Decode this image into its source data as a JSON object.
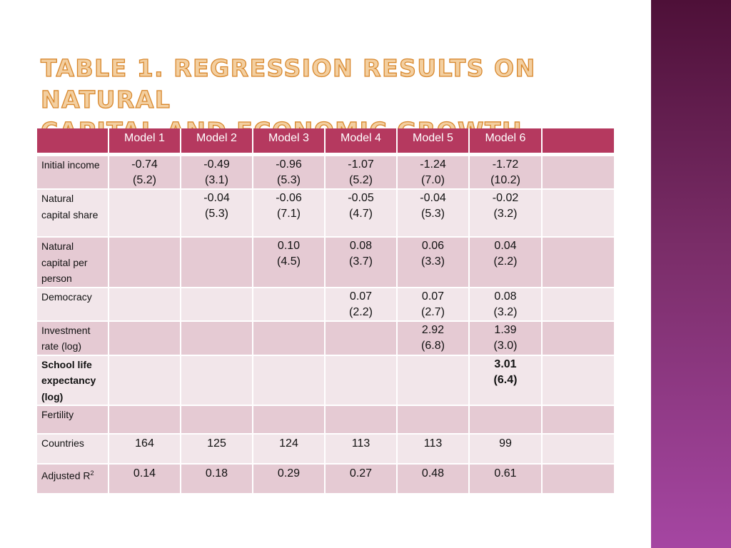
{
  "slide": {
    "title_line1": "Table 1. Regression results on natural",
    "title_line2": "capital and economic growth"
  },
  "table": {
    "columns": [
      "Model 1",
      "Model 2",
      "Model 3",
      "Model 4",
      "Model 5",
      "Model 6",
      ""
    ],
    "rows": [
      {
        "label": "Initial income",
        "cells": [
          {
            "coef": "-0.74",
            "t": "(5.2)"
          },
          {
            "coef": "-0.49",
            "t": "(3.1)"
          },
          {
            "coef": "-0.96",
            "t": "(5.3)"
          },
          {
            "coef": "-1.07",
            "t": "(5.2)"
          },
          {
            "coef": "-1.24",
            "t": "(7.0)"
          },
          {
            "coef": "-1.72",
            "t": "(10.2)"
          },
          {
            "coef": "",
            "t": ""
          }
        ]
      },
      {
        "label": "Natural capital share",
        "cells": [
          {
            "coef": "",
            "t": ""
          },
          {
            "coef": "-0.04",
            "t": "(5.3)"
          },
          {
            "coef": "-0.06",
            "t": "(7.1)"
          },
          {
            "coef": "-0.05",
            "t": "(4.7)"
          },
          {
            "coef": "-0.04",
            "t": "(5.3)"
          },
          {
            "coef": "-0.02",
            "t": "(3.2)"
          },
          {
            "coef": "",
            "t": ""
          }
        ]
      },
      {
        "label": "Natural capital per person",
        "cells": [
          {
            "coef": "",
            "t": ""
          },
          {
            "coef": "",
            "t": ""
          },
          {
            "coef": "0.10",
            "t": "(4.5)"
          },
          {
            "coef": "0.08",
            "t": "(3.7)"
          },
          {
            "coef": "0.06",
            "t": "(3.3)"
          },
          {
            "coef": "0.04",
            "t": "(2.2)"
          },
          {
            "coef": "",
            "t": ""
          }
        ]
      },
      {
        "label": "Democracy",
        "cells": [
          {
            "coef": "",
            "t": ""
          },
          {
            "coef": "",
            "t": ""
          },
          {
            "coef": "",
            "t": ""
          },
          {
            "coef": "0.07",
            "t": "(2.2)"
          },
          {
            "coef": "0.07",
            "t": "(2.7)"
          },
          {
            "coef": "0.08",
            "t": "(3.2)"
          },
          {
            "coef": "",
            "t": ""
          }
        ]
      },
      {
        "label": "Investment rate (log)",
        "cells": [
          {
            "coef": "",
            "t": ""
          },
          {
            "coef": "",
            "t": ""
          },
          {
            "coef": "",
            "t": ""
          },
          {
            "coef": "",
            "t": ""
          },
          {
            "coef": "2.92",
            "t": "(6.8)"
          },
          {
            "coef": "1.39",
            "t": "(3.0)"
          },
          {
            "coef": "",
            "t": ""
          }
        ]
      },
      {
        "label": "School life expectancy (log)",
        "cells": [
          {
            "coef": "",
            "t": ""
          },
          {
            "coef": "",
            "t": ""
          },
          {
            "coef": "",
            "t": ""
          },
          {
            "coef": "",
            "t": ""
          },
          {
            "coef": "",
            "t": ""
          },
          {
            "coef": "3.01",
            "t": "(6.4)"
          },
          {
            "coef": "",
            "t": ""
          }
        ]
      },
      {
        "label": "Fertility",
        "cells": [
          {
            "coef": "",
            "t": ""
          },
          {
            "coef": "",
            "t": ""
          },
          {
            "coef": "",
            "t": ""
          },
          {
            "coef": "",
            "t": ""
          },
          {
            "coef": "",
            "t": ""
          },
          {
            "coef": "",
            "t": ""
          },
          {
            "coef": "",
            "t": ""
          }
        ]
      },
      {
        "label": "Countries",
        "cells": [
          "164",
          "125",
          "124",
          "113",
          "113",
          "99",
          ""
        ]
      },
      {
        "label": "Adjusted R",
        "label_sup": "2",
        "cells": [
          "0.14",
          "0.18",
          "0.29",
          "0.27",
          "0.48",
          "0.61",
          ""
        ]
      }
    ]
  },
  "colors": {
    "header_bg": "#b5395f",
    "row_dark": "#e5cad3",
    "row_light": "#f2e6ea",
    "title_fill": "#f3cfa0",
    "title_outline": "#d8872c",
    "side_band_top": "#4e1038",
    "side_band_bottom": "#a546a2"
  }
}
